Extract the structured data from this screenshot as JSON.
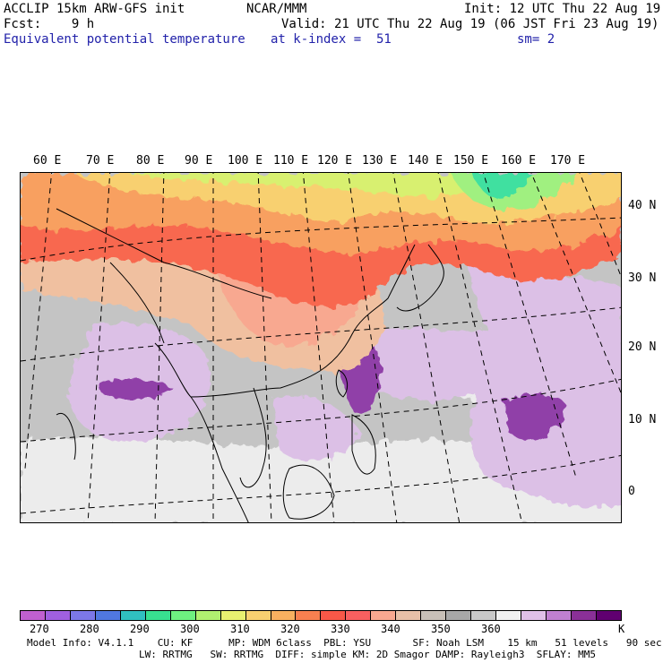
{
  "header": {
    "line1_left": "ACCLIP 15km ARW-GFS init",
    "line1_mid": "NCAR/MMM",
    "line1_right": "Init: 12 UTC Thu 22 Aug 19",
    "line2_left": "Fcst:    9 h",
    "line2_right": "Valid: 21 UTC Thu 22 Aug 19 (06 JST Fri 23 Aug 19)",
    "line3_left": "Equivalent potential temperature",
    "line3_mid": "at k-index =  51",
    "line3_right": "sm= 2"
  },
  "map": {
    "lon_labels": [
      "60 E",
      "70 E",
      "80 E",
      "90 E",
      "100 E",
      "110 E",
      "120 E",
      "130 E",
      "140 E",
      "150 E",
      "160 E",
      "170 E"
    ],
    "lat_labels": [
      "40 N",
      "30 N",
      "20 N",
      "10 N",
      "0"
    ]
  },
  "colorbar": {
    "colors": [
      "#c060d0",
      "#a060e0",
      "#7c78e8",
      "#5078e0",
      "#30c0c0",
      "#38e090",
      "#6ef080",
      "#b0f070",
      "#e8f070",
      "#f8d070",
      "#f8b060",
      "#f88050",
      "#f85848",
      "#f86060",
      "#f8a890",
      "#e8c0a8",
      "#c8c0b8",
      "#a8a8a8",
      "#c8c8c8",
      "#f0f0f0",
      "#e0c0e8",
      "#c080d0",
      "#8a3098",
      "#600070"
    ],
    "ticks": [
      "270",
      "280",
      "290",
      "300",
      "310",
      "320",
      "330",
      "340",
      "350",
      "360"
    ],
    "unit": "K"
  },
  "footer": {
    "line1": "Model Info: V4.1.1    CU: KF      MP: WDM 6class  PBL: YSU       SF: Noah LSM    15 km   51 levels   90 sec",
    "line2": "LW: RRTMG   SW: RRTMG  DIFF: simple KM: 2D Smagor DAMP: Rayleigh3  SFLAY: MM5"
  }
}
